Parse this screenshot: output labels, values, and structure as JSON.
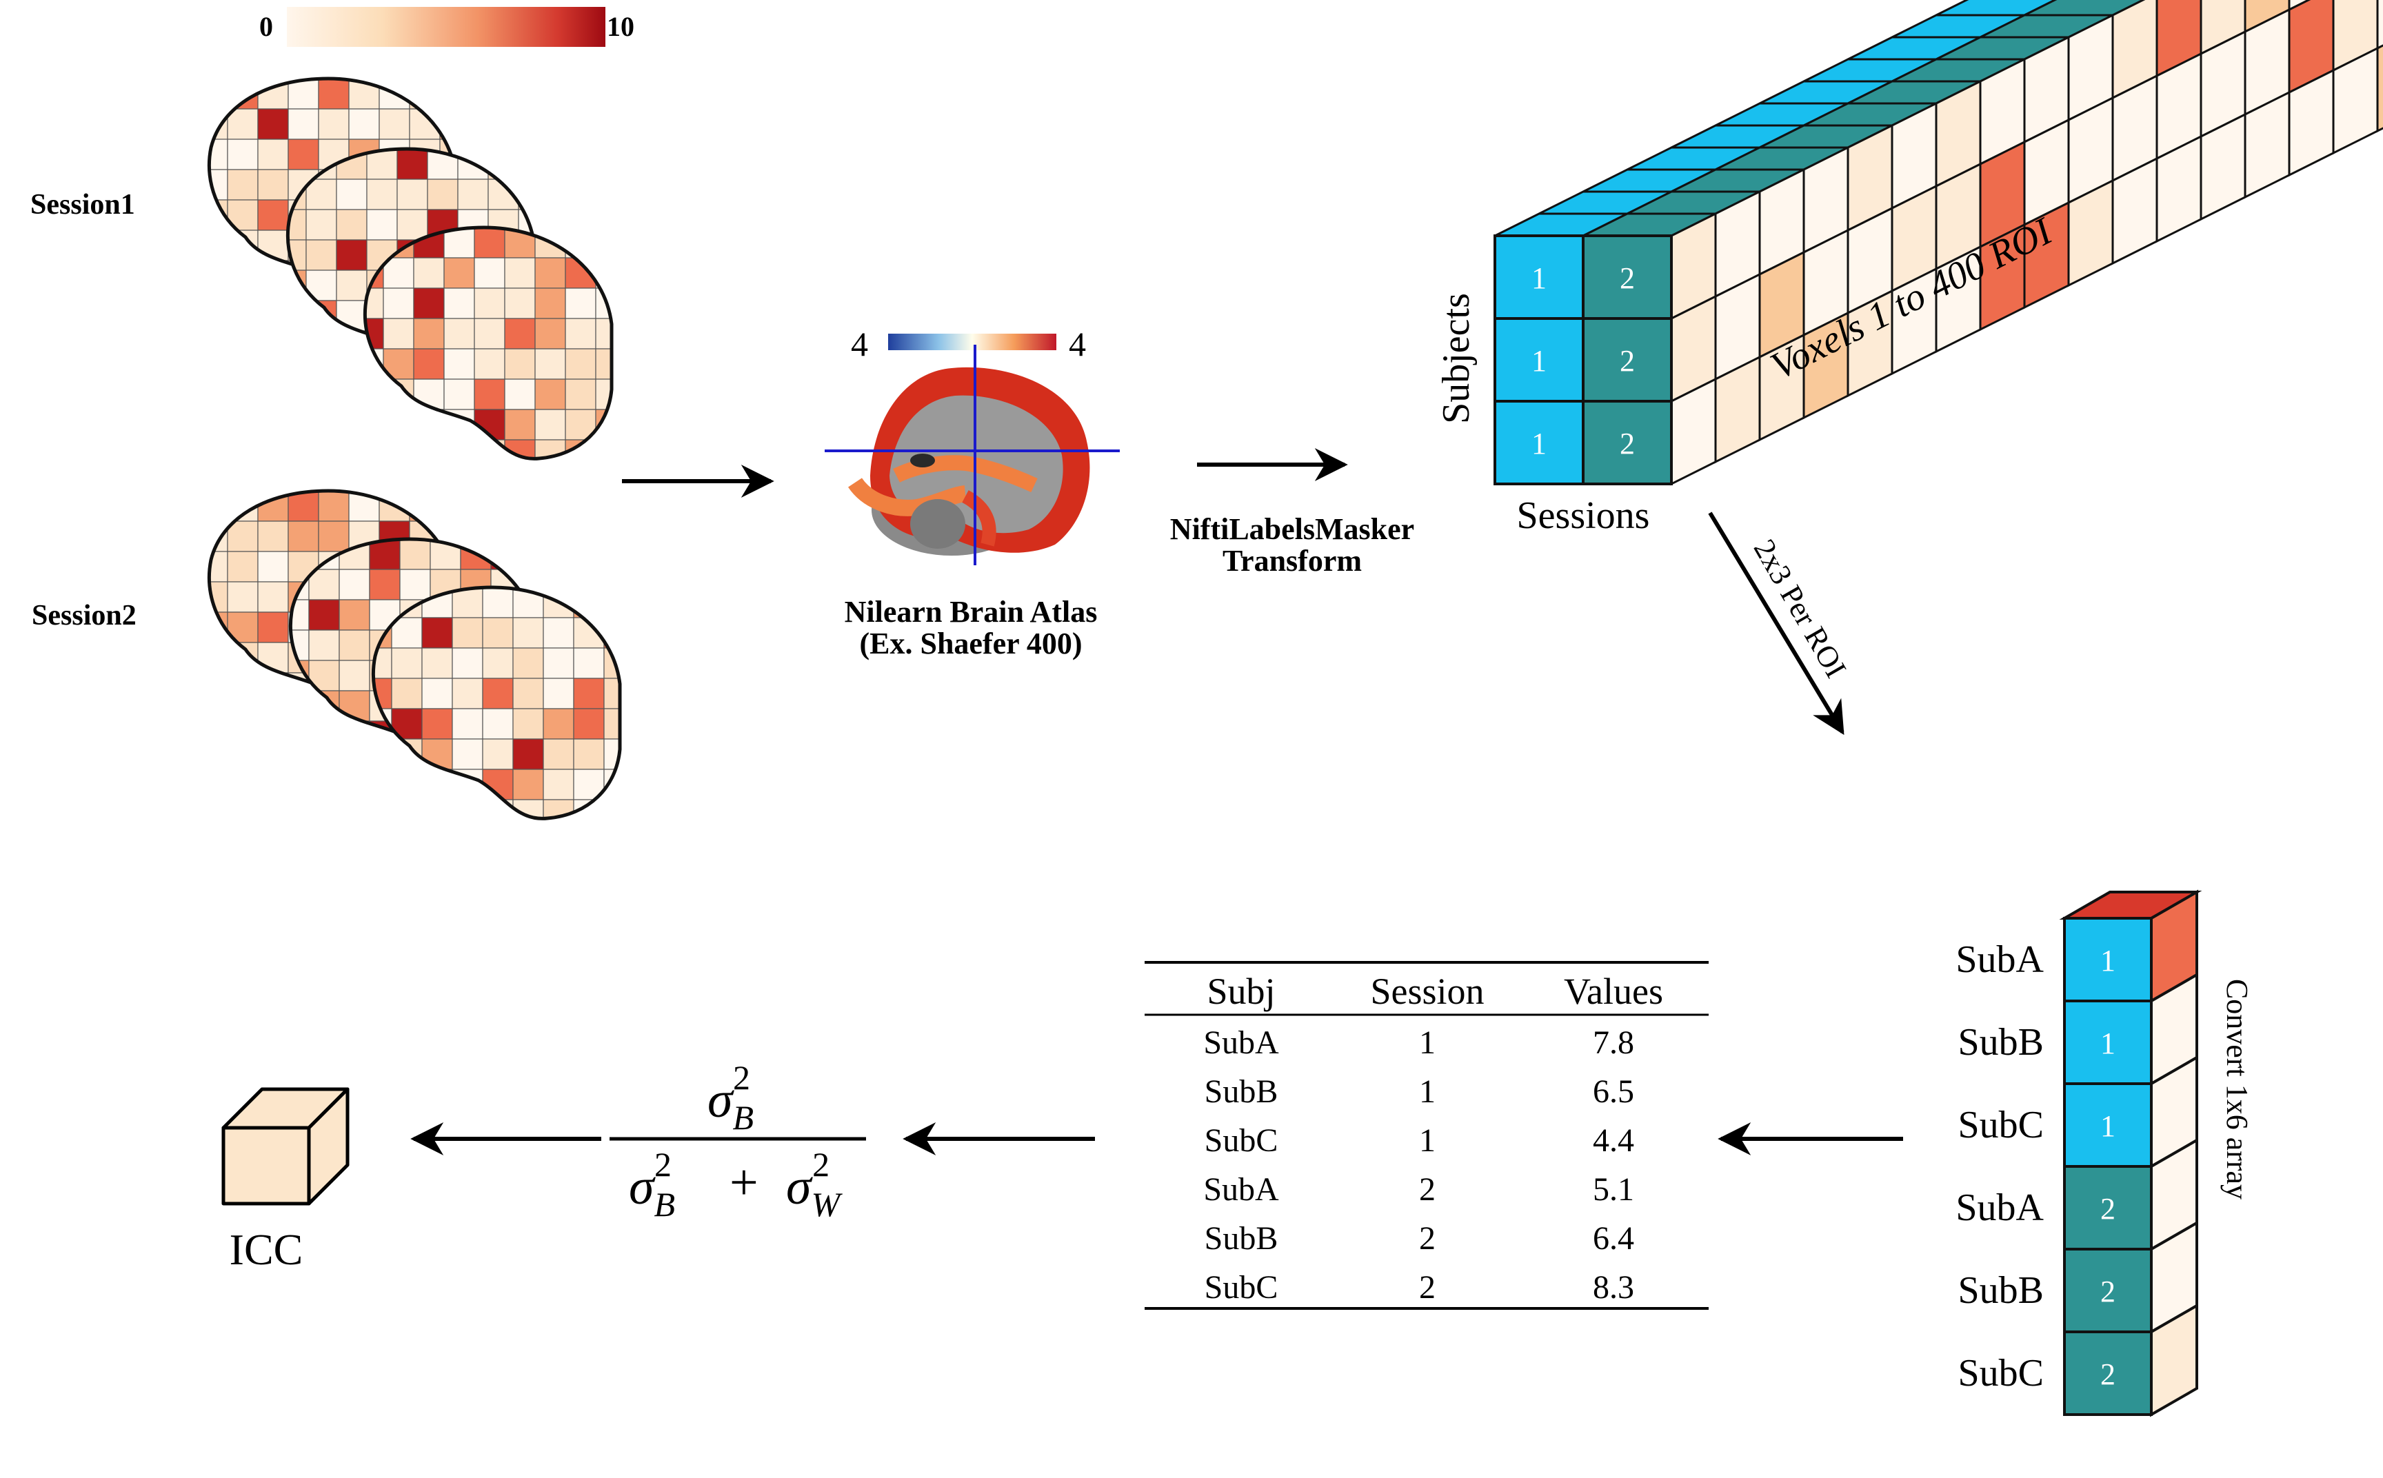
{
  "colorbar": {
    "min": "0",
    "max": "10"
  },
  "sessions": {
    "session1": "Session1",
    "session2": "Session2"
  },
  "atlas": {
    "scale_left": "4",
    "scale_right": "4",
    "label_line1": "Nilearn Brain Atlas",
    "label_line2": "(Ex. Shaefer 400)"
  },
  "masker": {
    "line1": "NiftiLabelsMasker",
    "line2": "Transform"
  },
  "cube": {
    "subjects_label": "Subjects",
    "sessions_label": "Sessions",
    "voxels_label": "Voxels 1 to 400 ROI",
    "session1_cells": [
      "1",
      "1",
      "1"
    ],
    "session2_cells": [
      "2",
      "2",
      "2"
    ]
  },
  "per_roi_label": "2x3 Per ROI",
  "array": {
    "label": "Convert 1x6 array",
    "rows": [
      {
        "subject": "SubA",
        "session": "1"
      },
      {
        "subject": "SubB",
        "session": "1"
      },
      {
        "subject": "SubC",
        "session": "1"
      },
      {
        "subject": "SubA",
        "session": "2"
      },
      {
        "subject": "SubB",
        "session": "2"
      },
      {
        "subject": "SubC",
        "session": "2"
      }
    ]
  },
  "table": {
    "headers": [
      "Subj",
      "Session",
      "Values"
    ],
    "rows": [
      [
        "SubA",
        "1",
        "7.8"
      ],
      [
        "SubB",
        "1",
        "6.5"
      ],
      [
        "SubC",
        "1",
        "4.4"
      ],
      [
        "SubA",
        "2",
        "5.1"
      ],
      [
        "SubB",
        "2",
        "6.4"
      ],
      [
        "SubC",
        "2",
        "8.3"
      ]
    ]
  },
  "formula": {
    "sigma": "σ",
    "sub_b": "B",
    "sub_w": "W",
    "sup": "2",
    "plus": "+"
  },
  "icc_label": "ICC",
  "colors": {
    "session1_blue": "#19BFEF",
    "session2_teal": "#2E9393",
    "heat_dark": "#B71C1C",
    "heat_mid": "#EE6C4D",
    "heat_light": "#F9C99A",
    "heat_pale": "#FDEBD6",
    "icc_fill": "#FCE6CB"
  }
}
